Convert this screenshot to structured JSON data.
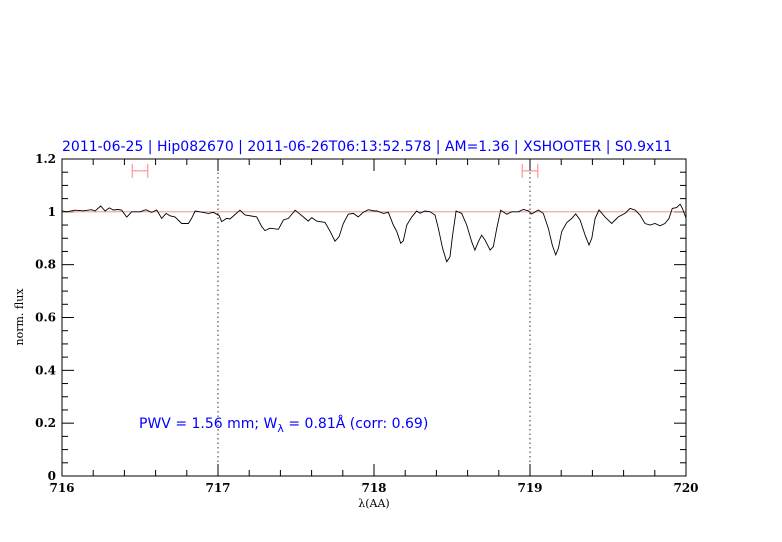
{
  "chart_data": {
    "type": "line",
    "title": "2011-06-25 | Hip082670 | 2011-06-26T06:13:52.578 | AM=1.36 | XSHOOTER | S0.9x11",
    "xlabel": "λ(AA)",
    "ylabel": "norm. flux",
    "xlim": [
      716,
      720
    ],
    "ylim": [
      0,
      1.2
    ],
    "x_ticks": [
      716,
      717,
      718,
      719,
      720
    ],
    "x_tick_labels": [
      "716",
      "717",
      "718",
      "719",
      "720"
    ],
    "x_minor_step": 0.2,
    "y_ticks": [
      0,
      0.2,
      0.4,
      0.6,
      0.8,
      1,
      1.2
    ],
    "y_tick_labels": [
      "0",
      "0.2",
      "0.4",
      "0.6",
      "0.8",
      "1",
      "1.2"
    ],
    "y_minor_step": 0.05,
    "grid": false,
    "reference_line_y": 1.0,
    "vertical_dotted_lines": [
      717,
      719
    ],
    "range_markers": [
      {
        "x": [
          716.45,
          716.55
        ],
        "y": 1.155
      },
      {
        "x": [
          718.95,
          719.05
        ],
        "y": 1.155
      }
    ],
    "annotation": {
      "prefix": "PWV = 1.56 mm; W",
      "subscript": "λ",
      "suffix": " = 0.81Å (corr: 0.69)"
    },
    "colors": {
      "title": "#0000ff",
      "spectrum": "#000000",
      "reference": "#f08080",
      "markers": "#ff8080",
      "annotation": "#0000ff"
    },
    "series": [
      {
        "x": [
          716.0,
          716.03,
          716.083,
          716.137,
          716.19,
          716.212,
          716.248,
          716.276,
          716.303,
          716.329,
          716.361,
          716.383,
          716.415,
          716.447,
          716.5,
          716.538,
          716.575,
          716.607,
          716.639,
          716.667,
          716.692,
          716.724,
          716.767,
          716.81,
          716.831,
          716.853,
          716.906,
          716.938,
          716.97,
          716.992,
          717.008,
          717.024,
          717.056,
          717.077,
          717.109,
          717.141,
          717.173,
          717.248,
          717.28,
          717.301,
          717.333,
          717.387,
          717.419,
          717.451,
          717.494,
          717.547,
          717.579,
          717.601,
          717.633,
          717.686,
          717.718,
          717.75,
          717.776,
          717.803,
          717.835,
          717.867,
          717.899,
          717.931,
          717.963,
          718.002,
          718.017,
          718.06,
          718.092,
          718.124,
          718.146,
          718.171,
          718.188,
          718.21,
          718.242,
          718.274,
          718.295,
          718.327,
          718.359,
          718.391,
          718.412,
          718.44,
          718.466,
          718.487,
          718.504,
          718.526,
          718.562,
          718.594,
          718.626,
          718.647,
          718.669,
          718.69,
          718.712,
          718.744,
          718.765,
          718.787,
          718.812,
          718.851,
          718.883,
          718.925,
          718.957,
          718.989,
          719.011,
          719.053,
          719.085,
          719.117,
          719.143,
          719.165,
          719.182,
          719.203,
          719.235,
          719.268,
          719.293,
          719.321,
          719.353,
          719.378,
          719.396,
          719.417,
          719.442,
          719.481,
          719.524,
          719.566,
          719.609,
          719.641,
          719.673,
          719.705,
          719.737,
          719.769,
          719.801,
          719.833,
          719.865,
          719.891,
          719.912,
          719.94,
          719.962,
          719.977,
          719.999
        ],
        "y": [
          1.003,
          1.0,
          1.006,
          1.004,
          1.008,
          1.003,
          1.022,
          1.003,
          1.015,
          1.007,
          1.009,
          1.006,
          0.98,
          1.0,
          1.0,
          1.008,
          0.998,
          1.007,
          0.975,
          0.994,
          0.985,
          0.981,
          0.956,
          0.956,
          0.975,
          1.003,
          0.998,
          0.994,
          0.998,
          0.991,
          0.985,
          0.963,
          0.975,
          0.973,
          0.99,
          1.006,
          0.988,
          0.981,
          0.944,
          0.929,
          0.938,
          0.934,
          0.969,
          0.975,
          1.006,
          0.981,
          0.965,
          0.978,
          0.965,
          0.96,
          0.927,
          0.889,
          0.906,
          0.956,
          0.991,
          0.994,
          0.981,
          0.998,
          1.008,
          1.003,
          1.004,
          0.994,
          0.998,
          0.95,
          0.925,
          0.881,
          0.89,
          0.95,
          0.981,
          1.003,
          0.995,
          1.003,
          1.0,
          0.988,
          0.938,
          0.862,
          0.811,
          0.83,
          0.912,
          1.003,
          0.994,
          0.95,
          0.887,
          0.855,
          0.887,
          0.912,
          0.893,
          0.855,
          0.868,
          0.938,
          1.006,
          0.991,
          1.0,
          1.0,
          1.009,
          1.004,
          0.992,
          1.007,
          0.994,
          0.938,
          0.874,
          0.837,
          0.862,
          0.925,
          0.959,
          0.975,
          0.992,
          0.969,
          0.912,
          0.874,
          0.9,
          0.975,
          1.007,
          0.981,
          0.956,
          0.981,
          0.994,
          1.013,
          1.007,
          0.988,
          0.956,
          0.95,
          0.956,
          0.947,
          0.956,
          0.975,
          1.013,
          1.016,
          1.029,
          1.013,
          0.978
        ]
      }
    ]
  }
}
